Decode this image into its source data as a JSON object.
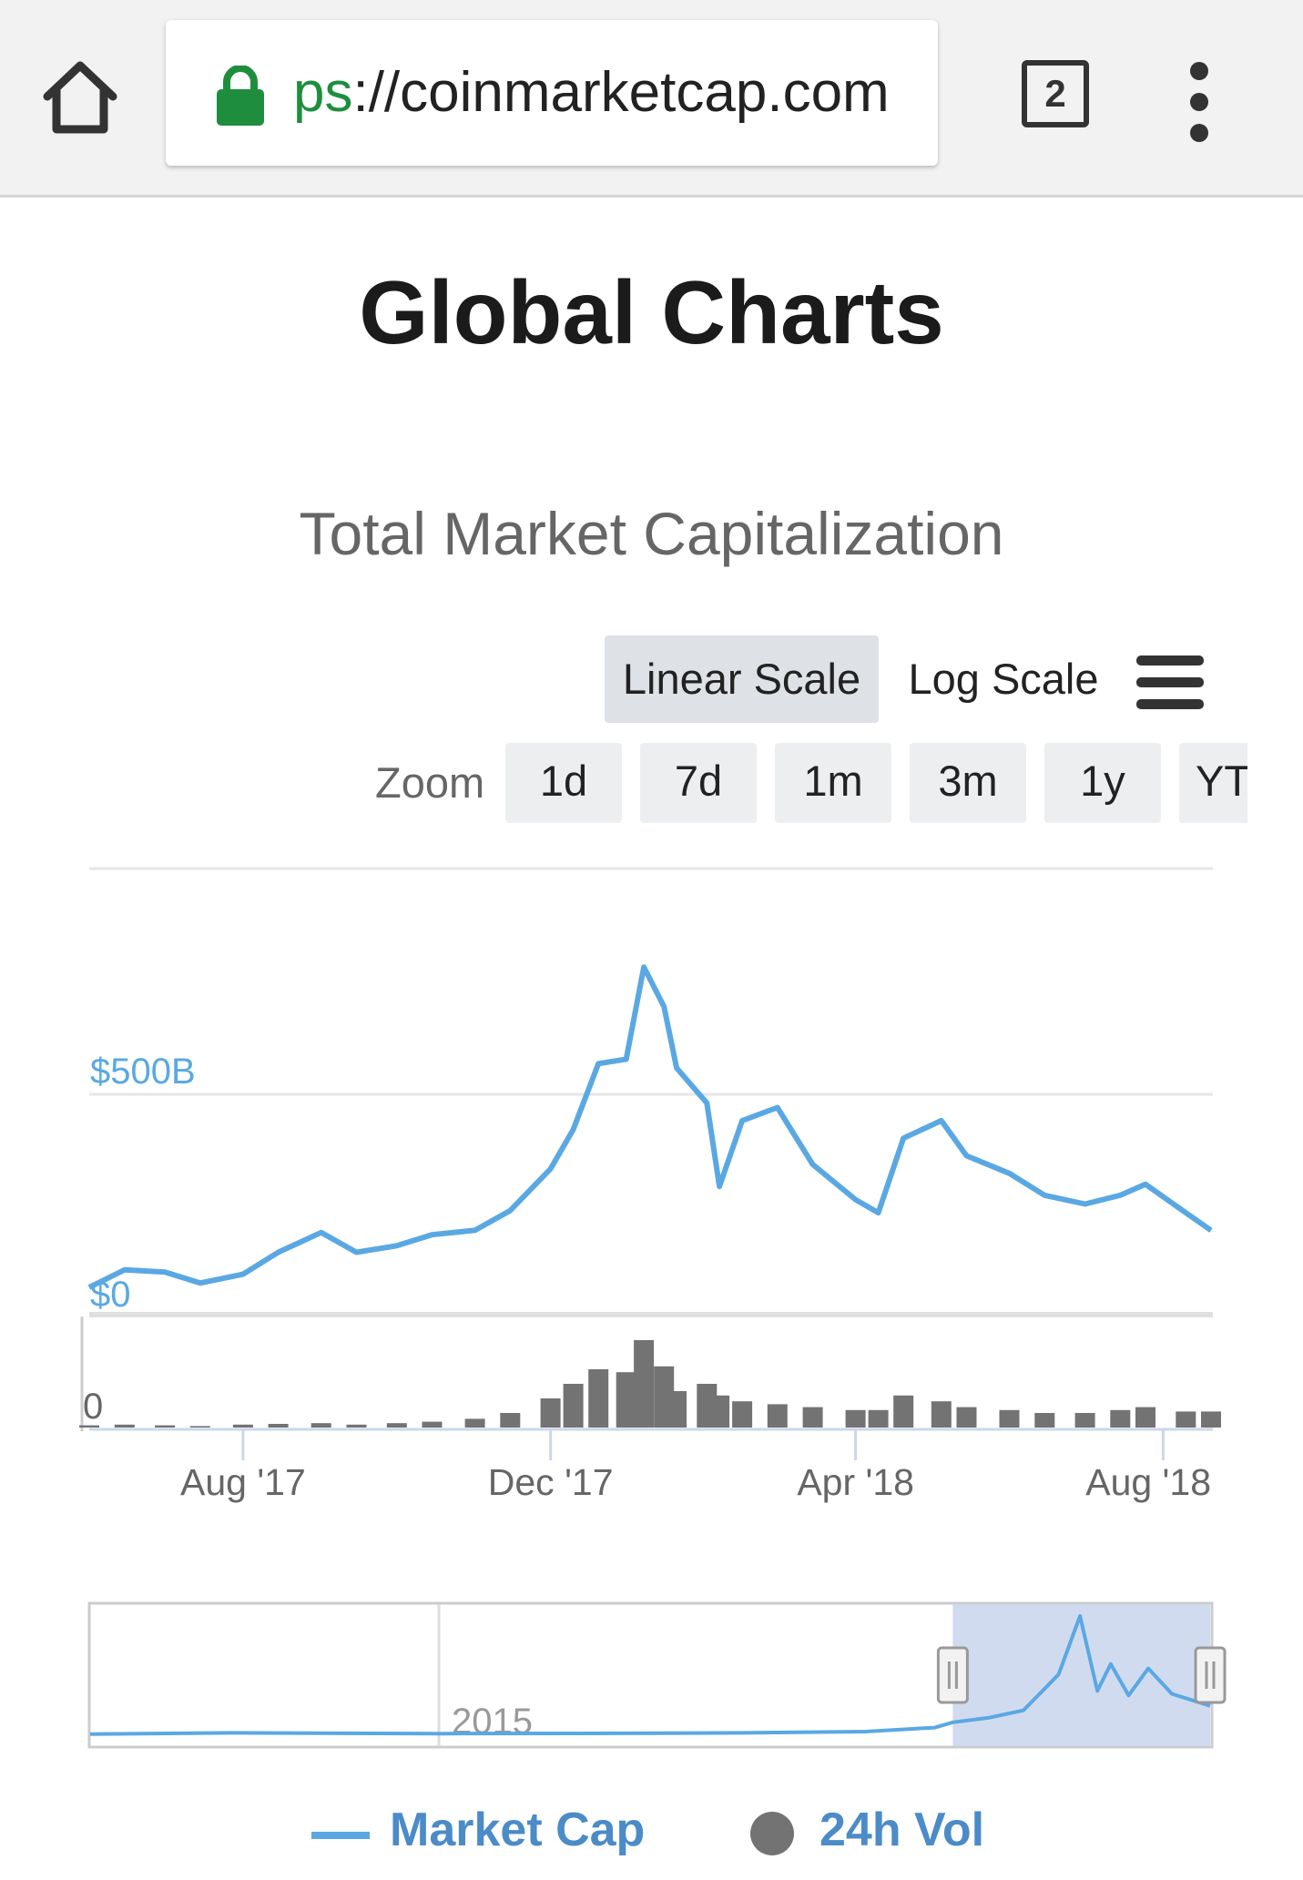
{
  "browser": {
    "url_scheme": "ps",
    "url_rest": "://coinmarketcap.com",
    "tab_count": "2",
    "icons": {
      "home": "home-icon",
      "lock": "lock-icon",
      "tabs": "tabs-icon",
      "menu": "more-vert-icon"
    }
  },
  "page": {
    "title": "Global Charts"
  },
  "controls": {
    "scale_options": [
      {
        "label": "Linear Scale",
        "active": true
      },
      {
        "label": "Log Scale",
        "active": false
      }
    ],
    "zoom_label": "Zoom",
    "zoom_options": [
      "1d",
      "7d",
      "1m",
      "3m",
      "1y",
      "YTD"
    ],
    "menu_icon": "hamburger-menu-icon"
  },
  "colors": {
    "market_cap": "#5aa8e3",
    "volume": "#737373",
    "legend_text": "#4b8bc8",
    "navigator_mask": "#c9d5ec"
  },
  "chart_data": {
    "type": "line",
    "title": "Total Market Capitalization",
    "x": [
      "2017-06-01",
      "2017-06-15",
      "2017-07-01",
      "2017-07-15",
      "2017-08-01",
      "2017-08-15",
      "2017-09-01",
      "2017-09-15",
      "2017-10-01",
      "2017-10-15",
      "2017-11-01",
      "2017-11-15",
      "2017-12-01",
      "2017-12-10",
      "2017-12-20",
      "2017-12-31",
      "2018-01-07",
      "2018-01-15",
      "2018-01-20",
      "2018-02-01",
      "2018-02-06",
      "2018-02-15",
      "2018-03-01",
      "2018-03-15",
      "2018-04-01",
      "2018-04-10",
      "2018-04-20",
      "2018-05-05",
      "2018-05-15",
      "2018-06-01",
      "2018-06-15",
      "2018-07-01",
      "2018-07-15",
      "2018-07-25",
      "2018-08-10",
      "2018-08-20"
    ],
    "series": [
      {
        "name": "Market Cap",
        "values": [
          60,
          100,
          95,
          70,
          90,
          140,
          185,
          140,
          155,
          180,
          190,
          235,
          330,
          420,
          570,
          580,
          790,
          700,
          560,
          480,
          290,
          440,
          470,
          340,
          260,
          230,
          400,
          440,
          360,
          320,
          270,
          250,
          270,
          295,
          230,
          190
        ]
      },
      {
        "name": "24h Vol",
        "values": [
          1.5,
          2,
          1.5,
          1,
          2,
          2.5,
          3,
          2,
          3,
          4,
          6,
          10,
          20,
          30,
          40,
          38,
          60,
          42,
          25,
          30,
          22,
          18,
          16,
          14,
          12,
          12,
          22,
          18,
          14,
          12,
          10,
          10,
          12,
          14,
          11,
          11
        ]
      }
    ],
    "y_axis": {
      "ticks": [
        "$0",
        "$500B"
      ]
    },
    "volume_axis": {
      "ticks": [
        "0"
      ]
    },
    "x_ticks": [
      {
        "date": "2017-08-01",
        "label": "Aug '17"
      },
      {
        "date": "2017-12-01",
        "label": "Dec '17"
      },
      {
        "date": "2018-04-01",
        "label": "Apr '18"
      },
      {
        "date": "2018-08-01",
        "label": "Aug '18"
      }
    ],
    "legend": [
      {
        "label": "Market Cap",
        "marker": "line"
      },
      {
        "label": "24h Vol",
        "marker": "circle"
      }
    ],
    "navigator": {
      "label": "2015",
      "x": [
        "2013-05-01",
        "2014-01-01",
        "2015-01-01",
        "2016-01-01",
        "2016-06-01",
        "2017-01-01",
        "2017-05-01",
        "2017-06-01",
        "2017-08-01",
        "2017-10-01",
        "2017-12-01",
        "2018-01-07",
        "2018-02-06",
        "2018-03-01",
        "2018-04-01",
        "2018-05-05",
        "2018-06-15",
        "2018-08-20"
      ],
      "values": [
        1.5,
        10,
        5,
        7,
        10,
        18,
        45,
        80,
        110,
        160,
        400,
        790,
        290,
        470,
        260,
        440,
        270,
        190
      ],
      "selected_range": [
        "2017-06-01",
        "2018-08-20"
      ]
    }
  }
}
